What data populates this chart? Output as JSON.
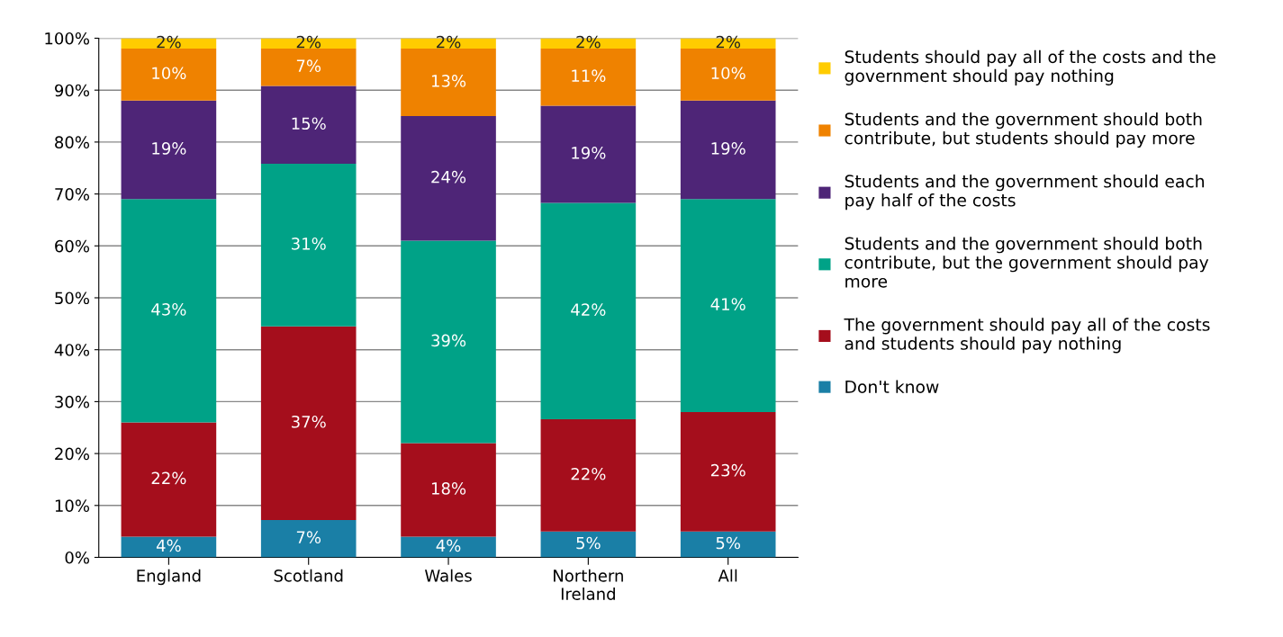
{
  "chart_data": {
    "type": "bar",
    "stacked": true,
    "categories": [
      "England",
      "Scotland",
      "Wales",
      "Northern\nIreland",
      "All"
    ],
    "series": [
      {
        "name": "Don't know",
        "color": "#1a7fa6",
        "values": [
          4,
          7.2,
          4,
          5,
          5
        ],
        "value_labels": [
          "4%",
          "7%",
          "4%",
          "5%",
          "5%"
        ]
      },
      {
        "name": "The government should pay all of the costs and students should pay nothing",
        "color": "#a50e1c",
        "values": [
          22,
          37.3,
          18,
          21.6,
          23
        ],
        "value_labels": [
          "22%",
          "37%",
          "18%",
          "22%",
          "23%"
        ]
      },
      {
        "name": "Students and the government should both contribute, but the government should pay more",
        "color": "#00a287",
        "values": [
          43,
          31.3,
          39,
          41.7,
          41
        ],
        "value_labels": [
          "43%",
          "31%",
          "39%",
          "42%",
          "41%"
        ]
      },
      {
        "name": "Students and the government should each pay half of the costs",
        "color": "#4e2577",
        "values": [
          19,
          15,
          24,
          18.7,
          19
        ],
        "value_labels": [
          "19%",
          "15%",
          "24%",
          "19%",
          "19%"
        ]
      },
      {
        "name": "Students and the government should both contribute, but students should pay more",
        "color": "#ef8200",
        "values": [
          10,
          7.2,
          13,
          11,
          10
        ],
        "value_labels": [
          "10%",
          "7%",
          "13%",
          "11%",
          "10%"
        ]
      },
      {
        "name": "Students should pay all of the costs and the government should pay nothing",
        "color": "#ffcc00",
        "values": [
          2,
          2,
          2,
          2,
          2
        ],
        "value_labels": [
          "2%",
          "2%",
          "2%",
          "2%",
          "2%"
        ]
      }
    ],
    "ylim": [
      0,
      100
    ],
    "yticks": [
      {
        "value": 0,
        "label": "0%"
      },
      {
        "value": 10,
        "label": "10%"
      },
      {
        "value": 20,
        "label": "20%"
      },
      {
        "value": 30,
        "label": "30%"
      },
      {
        "value": 40,
        "label": "40%"
      },
      {
        "value": 50,
        "label": "50%"
      },
      {
        "value": 60,
        "label": "60%"
      },
      {
        "value": 70,
        "label": "70%"
      },
      {
        "value": 80,
        "label": "80%"
      },
      {
        "value": 90,
        "label": "90%"
      },
      {
        "value": 100,
        "label": "100%"
      }
    ],
    "grid": "y",
    "legend": "right"
  }
}
